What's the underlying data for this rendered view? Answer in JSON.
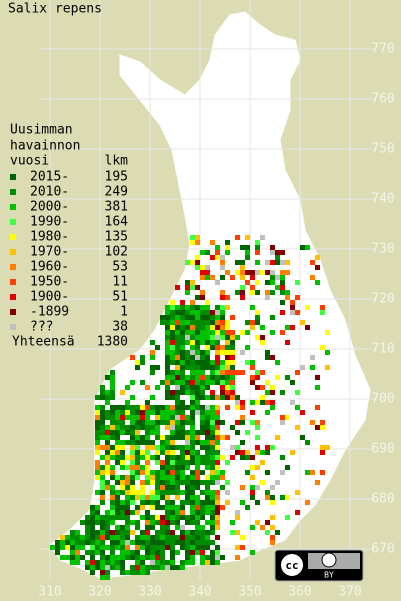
{
  "title": "Salix repens",
  "legend": {
    "header": [
      "Uusimman",
      "havainnon"
    ],
    "column_headers": [
      "vuosi",
      "lkm"
    ],
    "entries": [
      {
        "label": "2015-",
        "count": 195,
        "color": "#006400"
      },
      {
        "label": "2010-",
        "count": 249,
        "color": "#008c00"
      },
      {
        "label": "2000-",
        "count": 381,
        "color": "#00c000"
      },
      {
        "label": "1990-",
        "count": 164,
        "color": "#40ff40"
      },
      {
        "label": "1980-",
        "count": 135,
        "color": "#ffff00"
      },
      {
        "label": "1970-",
        "count": 102,
        "color": "#ffc000"
      },
      {
        "label": "1960-",
        "count": 53,
        "color": "#ff8000"
      },
      {
        "label": "1950-",
        "count": 11,
        "color": "#ff4000"
      },
      {
        "label": "1900-",
        "count": 51,
        "color": "#e00000"
      },
      {
        "label": "-1899",
        "count": 1,
        "color": "#800000"
      },
      {
        "label": "???",
        "count": 38,
        "color": "#c0c0c0"
      }
    ],
    "total_label": "Yhteensä",
    "total": 1380
  },
  "axes": {
    "x_ticks": [
      310,
      320,
      330,
      340,
      350,
      360,
      370
    ],
    "y_ticks": [
      670,
      680,
      690,
      700,
      710,
      720,
      730,
      740,
      750,
      760,
      770
    ]
  },
  "license": {
    "badge": "cc",
    "by": "BY"
  }
}
